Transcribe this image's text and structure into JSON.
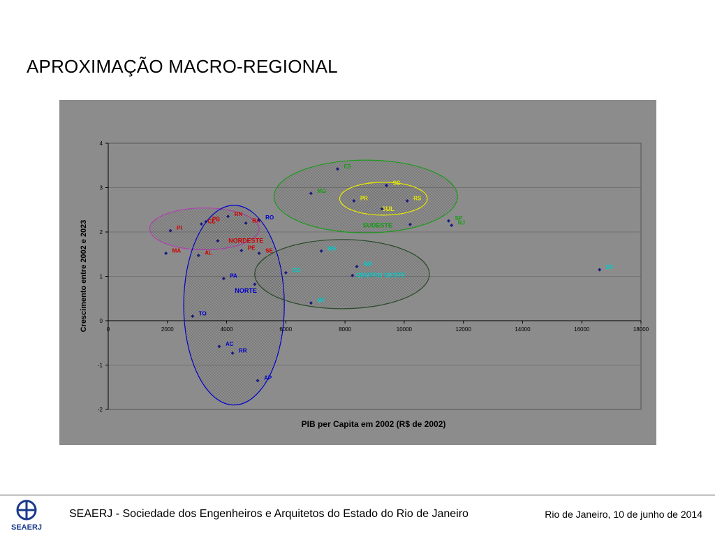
{
  "slide": {
    "title": "APROXIMAÇÃO MACRO-REGIONAL"
  },
  "footer": {
    "organization": "SEAERJ - Sociedade dos Engenheiros e Arquitetos do Estado do Rio de Janeiro",
    "date": "Rio de Janeiro, 10 de junho de 2014",
    "logo_text": "SEAERJ"
  },
  "colors": {
    "plot_background": "#8c8c8c",
    "nordeste": "#cc0000",
    "norte": "#0000cc",
    "sudeste": "#1a9a1a",
    "sul": "#e8e800",
    "centro_oeste": "#00cccc",
    "marker": "#1a1a80"
  },
  "chart_data": {
    "type": "scatter",
    "xlabel": "PIB per Capita em 2002 (R$ de 2002)",
    "ylabel": "Crescimento entre 2002 e 2023",
    "xlim": [
      0,
      18000
    ],
    "ylim": [
      -2,
      4
    ],
    "xticks": [
      "0",
      "2000",
      "4000",
      "6000",
      "8000",
      "10000",
      "12000",
      "14000",
      "16000",
      "18000"
    ],
    "yticks": [
      "-2",
      "-1",
      "0",
      "1",
      "2",
      "3",
      "4"
    ],
    "grid": "horizontal",
    "points": [
      {
        "label": "PI",
        "x": 2100,
        "y": 2.03,
        "color": "#cc0000"
      },
      {
        "label": "MA",
        "x": 1950,
        "y": 1.52,
        "color": "#cc0000"
      },
      {
        "label": "CE",
        "x": 3150,
        "y": 2.18,
        "color": "#cc0000"
      },
      {
        "label": "PB",
        "x": 3300,
        "y": 2.23,
        "color": "#cc0000"
      },
      {
        "label": "RN",
        "x": 4050,
        "y": 2.35,
        "color": "#cc0000"
      },
      {
        "label": "BA",
        "x": 4650,
        "y": 2.2,
        "color": "#cc0000"
      },
      {
        "label": "AL",
        "x": 3050,
        "y": 1.47,
        "color": "#cc0000"
      },
      {
        "label": "PE",
        "x": 4500,
        "y": 1.58,
        "color": "#cc0000"
      },
      {
        "label": "SE",
        "x": 5100,
        "y": 1.52,
        "color": "#cc0000"
      },
      {
        "label": "RO",
        "x": 5100,
        "y": 2.27,
        "color": "#0000cc"
      },
      {
        "label": "PA",
        "x": 3900,
        "y": 0.95,
        "color": "#0000cc"
      },
      {
        "label": "TO",
        "x": 2850,
        "y": 0.1,
        "color": "#0000cc"
      },
      {
        "label": "AC",
        "x": 3750,
        "y": -0.58,
        "color": "#0000cc"
      },
      {
        "label": "RR",
        "x": 4200,
        "y": -0.73,
        "color": "#0000cc"
      },
      {
        "label": "AP",
        "x": 5050,
        "y": -1.35,
        "color": "#0000cc"
      },
      {
        "label": "GO",
        "x": 6000,
        "y": 1.08,
        "color": "#00cccc"
      },
      {
        "label": "MS",
        "x": 7200,
        "y": 1.57,
        "color": "#00cccc"
      },
      {
        "label": "AM",
        "x": 8400,
        "y": 1.22,
        "color": "#00cccc"
      },
      {
        "label": "MT",
        "x": 6850,
        "y": 0.4,
        "color": "#00cccc"
      },
      {
        "label": "DF",
        "x": 16600,
        "y": 1.15,
        "color": "#00cccc"
      },
      {
        "label": "ES",
        "x": 7750,
        "y": 3.42,
        "color": "#1a9a1a"
      },
      {
        "label": "MG",
        "x": 6850,
        "y": 2.87,
        "color": "#1a9a1a"
      },
      {
        "label": "SP",
        "x": 11500,
        "y": 2.25,
        "color": "#1a9a1a"
      },
      {
        "label": "RJ",
        "x": 11600,
        "y": 2.15,
        "color": "#1a9a1a"
      },
      {
        "label": "SC",
        "x": 9400,
        "y": 3.05,
        "color": "#e8e800"
      },
      {
        "label": "PR",
        "x": 8300,
        "y": 2.7,
        "color": "#e8e800"
      },
      {
        "label": "RS",
        "x": 10100,
        "y": 2.7,
        "color": "#e8e800"
      }
    ],
    "extra_markers": [
      {
        "x": 3700,
        "y": 1.8
      },
      {
        "x": 4950,
        "y": 0.82
      },
      {
        "x": 8250,
        "y": 1.02
      },
      {
        "x": 9250,
        "y": 2.52
      },
      {
        "x": 10200,
        "y": 2.17
      },
      {
        "x": 9400,
        "y": 3.05
      }
    ],
    "regions": [
      {
        "name": "NORDESTE",
        "color": "#b040b0",
        "text_color": "#cc0000",
        "cx": 3250,
        "cy": 2.07,
        "rx": 1850,
        "ry": 0.47
      },
      {
        "name": "NORTE",
        "color": "#0000cc",
        "text_color": "#0000cc",
        "cx": 4250,
        "cy": 0.35,
        "rx": 1700,
        "ry": 2.25
      },
      {
        "name": "CENTRO OESTE",
        "color": "#2a4a2a",
        "text_color": "#00cccc",
        "cx": 7900,
        "cy": 1.05,
        "rx": 2950,
        "ry": 0.78
      },
      {
        "name": "SUDESTE",
        "color": "#1a9a1a",
        "text_color": "#1a9a1a",
        "cx": 8700,
        "cy": 2.8,
        "rx": 3100,
        "ry": 0.82
      },
      {
        "name": "SUL",
        "color": "#e8e800",
        "text_color": "#e8e800",
        "cx": 9300,
        "cy": 2.75,
        "rx": 1480,
        "ry": 0.37
      }
    ]
  }
}
